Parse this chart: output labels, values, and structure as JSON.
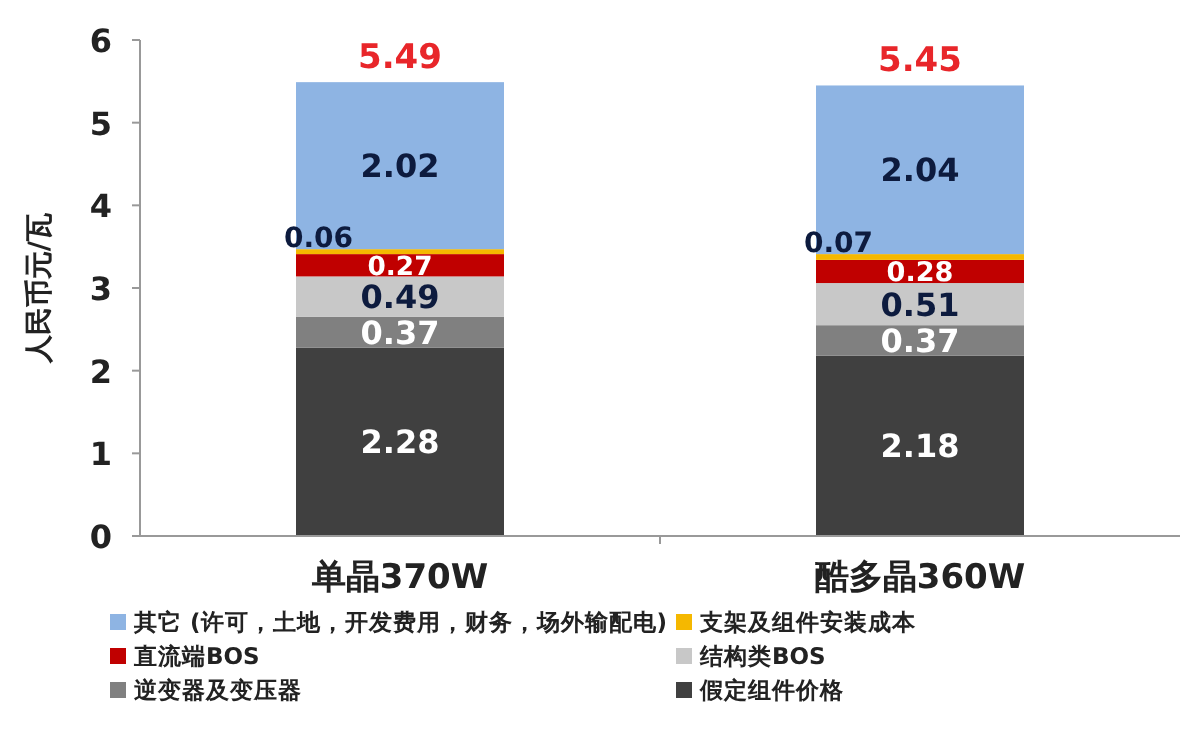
{
  "chart_data": {
    "type": "bar",
    "stacked": true,
    "ylabel": "人民币元/瓦",
    "categories": [
      "单晶370W",
      "酷多晶360W"
    ],
    "series": [
      {
        "name": "假定组件价格",
        "color": "#404040",
        "values": [
          2.28,
          2.18
        ]
      },
      {
        "name": "逆变器及变压器",
        "color": "#808080",
        "values": [
          0.37,
          0.37
        ]
      },
      {
        "name": "结构类BOS",
        "color": "#c8c8c8",
        "values": [
          0.49,
          0.51
        ]
      },
      {
        "name": "直流端BOS",
        "color": "#c00000",
        "values": [
          0.27,
          0.28
        ]
      },
      {
        "name": "支架及组件安装成本",
        "color": "#f5b800",
        "values": [
          0.06,
          0.07
        ]
      },
      {
        "name": "其它 (许可，土地，开发费用，财务，场外输配电)",
        "color": "#8eb4e3",
        "values": [
          2.02,
          2.04
        ]
      }
    ],
    "totals": [
      "5.49",
      "5.45"
    ],
    "data_labels": true,
    "ylim": [
      0,
      6
    ],
    "yticks": [
      0,
      1,
      2,
      3,
      4,
      5,
      6
    ],
    "grid": false,
    "legend": "bottom"
  }
}
